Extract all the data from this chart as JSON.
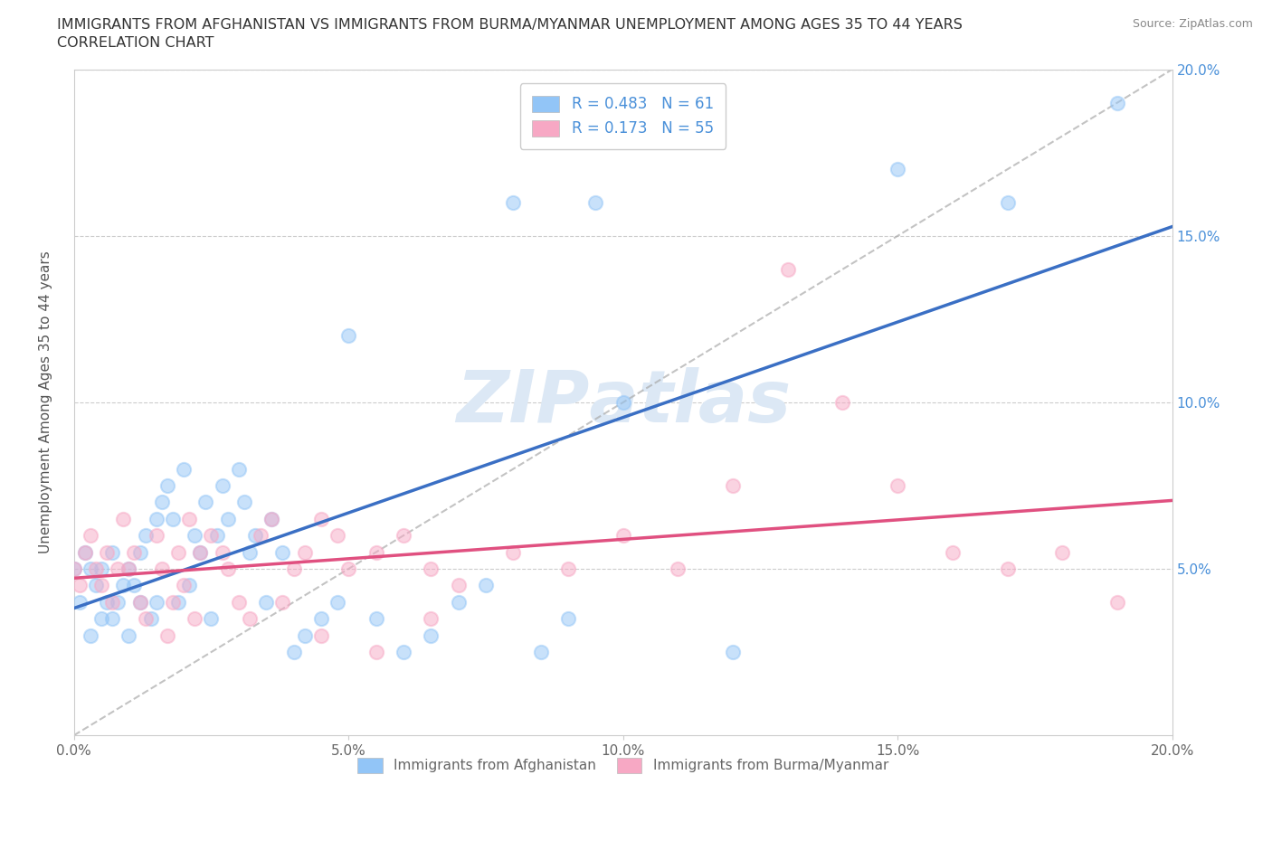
{
  "title_line1": "IMMIGRANTS FROM AFGHANISTAN VS IMMIGRANTS FROM BURMA/MYANMAR UNEMPLOYMENT AMONG AGES 35 TO 44 YEARS",
  "title_line2": "CORRELATION CHART",
  "source_text": "Source: ZipAtlas.com",
  "ylabel": "Unemployment Among Ages 35 to 44 years",
  "xlim": [
    0.0,
    0.2
  ],
  "ylim": [
    0.0,
    0.2
  ],
  "xtick_labels": [
    "0.0%",
    "5.0%",
    "10.0%",
    "15.0%",
    "20.0%"
  ],
  "xtick_values": [
    0.0,
    0.05,
    0.1,
    0.15,
    0.2
  ],
  "ytick_labels": [
    "5.0%",
    "10.0%",
    "15.0%",
    "20.0%"
  ],
  "ytick_values": [
    0.05,
    0.1,
    0.15,
    0.2
  ],
  "afghanistan_scatter_color": "#92c5f7",
  "burma_scatter_color": "#f7a8c4",
  "afghanistan_line_color": "#3a6fc4",
  "burma_line_color": "#e05080",
  "afghanistan_R": 0.483,
  "afghanistan_N": 61,
  "burma_R": 0.173,
  "burma_N": 55,
  "legend_text_color": "#4a90d9",
  "diag_line_color": "#aaaaaa",
  "right_tick_color": "#4a90d9",
  "watermark_color": "#dce8f5",
  "afg_x": [
    0.0,
    0.001,
    0.002,
    0.003,
    0.003,
    0.004,
    0.005,
    0.005,
    0.006,
    0.007,
    0.007,
    0.008,
    0.009,
    0.01,
    0.01,
    0.011,
    0.012,
    0.012,
    0.013,
    0.014,
    0.015,
    0.015,
    0.016,
    0.017,
    0.018,
    0.019,
    0.02,
    0.021,
    0.022,
    0.023,
    0.024,
    0.025,
    0.026,
    0.027,
    0.028,
    0.03,
    0.031,
    0.032,
    0.033,
    0.035,
    0.036,
    0.038,
    0.04,
    0.042,
    0.045,
    0.048,
    0.05,
    0.055,
    0.06,
    0.065,
    0.07,
    0.075,
    0.08,
    0.085,
    0.09,
    0.095,
    0.1,
    0.12,
    0.15,
    0.17,
    0.19
  ],
  "afg_y": [
    0.05,
    0.04,
    0.055,
    0.03,
    0.05,
    0.045,
    0.035,
    0.05,
    0.04,
    0.035,
    0.055,
    0.04,
    0.045,
    0.03,
    0.05,
    0.045,
    0.04,
    0.055,
    0.06,
    0.035,
    0.065,
    0.04,
    0.07,
    0.075,
    0.065,
    0.04,
    0.08,
    0.045,
    0.06,
    0.055,
    0.07,
    0.035,
    0.06,
    0.075,
    0.065,
    0.08,
    0.07,
    0.055,
    0.06,
    0.04,
    0.065,
    0.055,
    0.025,
    0.03,
    0.035,
    0.04,
    0.12,
    0.035,
    0.025,
    0.03,
    0.04,
    0.045,
    0.16,
    0.025,
    0.035,
    0.16,
    0.1,
    0.025,
    0.17,
    0.16,
    0.19
  ],
  "bur_x": [
    0.0,
    0.001,
    0.002,
    0.003,
    0.004,
    0.005,
    0.006,
    0.007,
    0.008,
    0.009,
    0.01,
    0.011,
    0.012,
    0.013,
    0.015,
    0.016,
    0.017,
    0.018,
    0.019,
    0.02,
    0.021,
    0.022,
    0.023,
    0.025,
    0.027,
    0.028,
    0.03,
    0.032,
    0.034,
    0.036,
    0.038,
    0.04,
    0.042,
    0.045,
    0.048,
    0.05,
    0.055,
    0.06,
    0.065,
    0.07,
    0.08,
    0.09,
    0.1,
    0.11,
    0.12,
    0.13,
    0.15,
    0.16,
    0.17,
    0.18,
    0.19,
    0.045,
    0.055,
    0.065,
    0.14
  ],
  "bur_y": [
    0.05,
    0.045,
    0.055,
    0.06,
    0.05,
    0.045,
    0.055,
    0.04,
    0.05,
    0.065,
    0.05,
    0.055,
    0.04,
    0.035,
    0.06,
    0.05,
    0.03,
    0.04,
    0.055,
    0.045,
    0.065,
    0.035,
    0.055,
    0.06,
    0.055,
    0.05,
    0.04,
    0.035,
    0.06,
    0.065,
    0.04,
    0.05,
    0.055,
    0.065,
    0.06,
    0.05,
    0.055,
    0.06,
    0.05,
    0.045,
    0.055,
    0.05,
    0.06,
    0.05,
    0.075,
    0.14,
    0.075,
    0.055,
    0.05,
    0.055,
    0.04,
    0.03,
    0.025,
    0.035,
    0.1
  ]
}
